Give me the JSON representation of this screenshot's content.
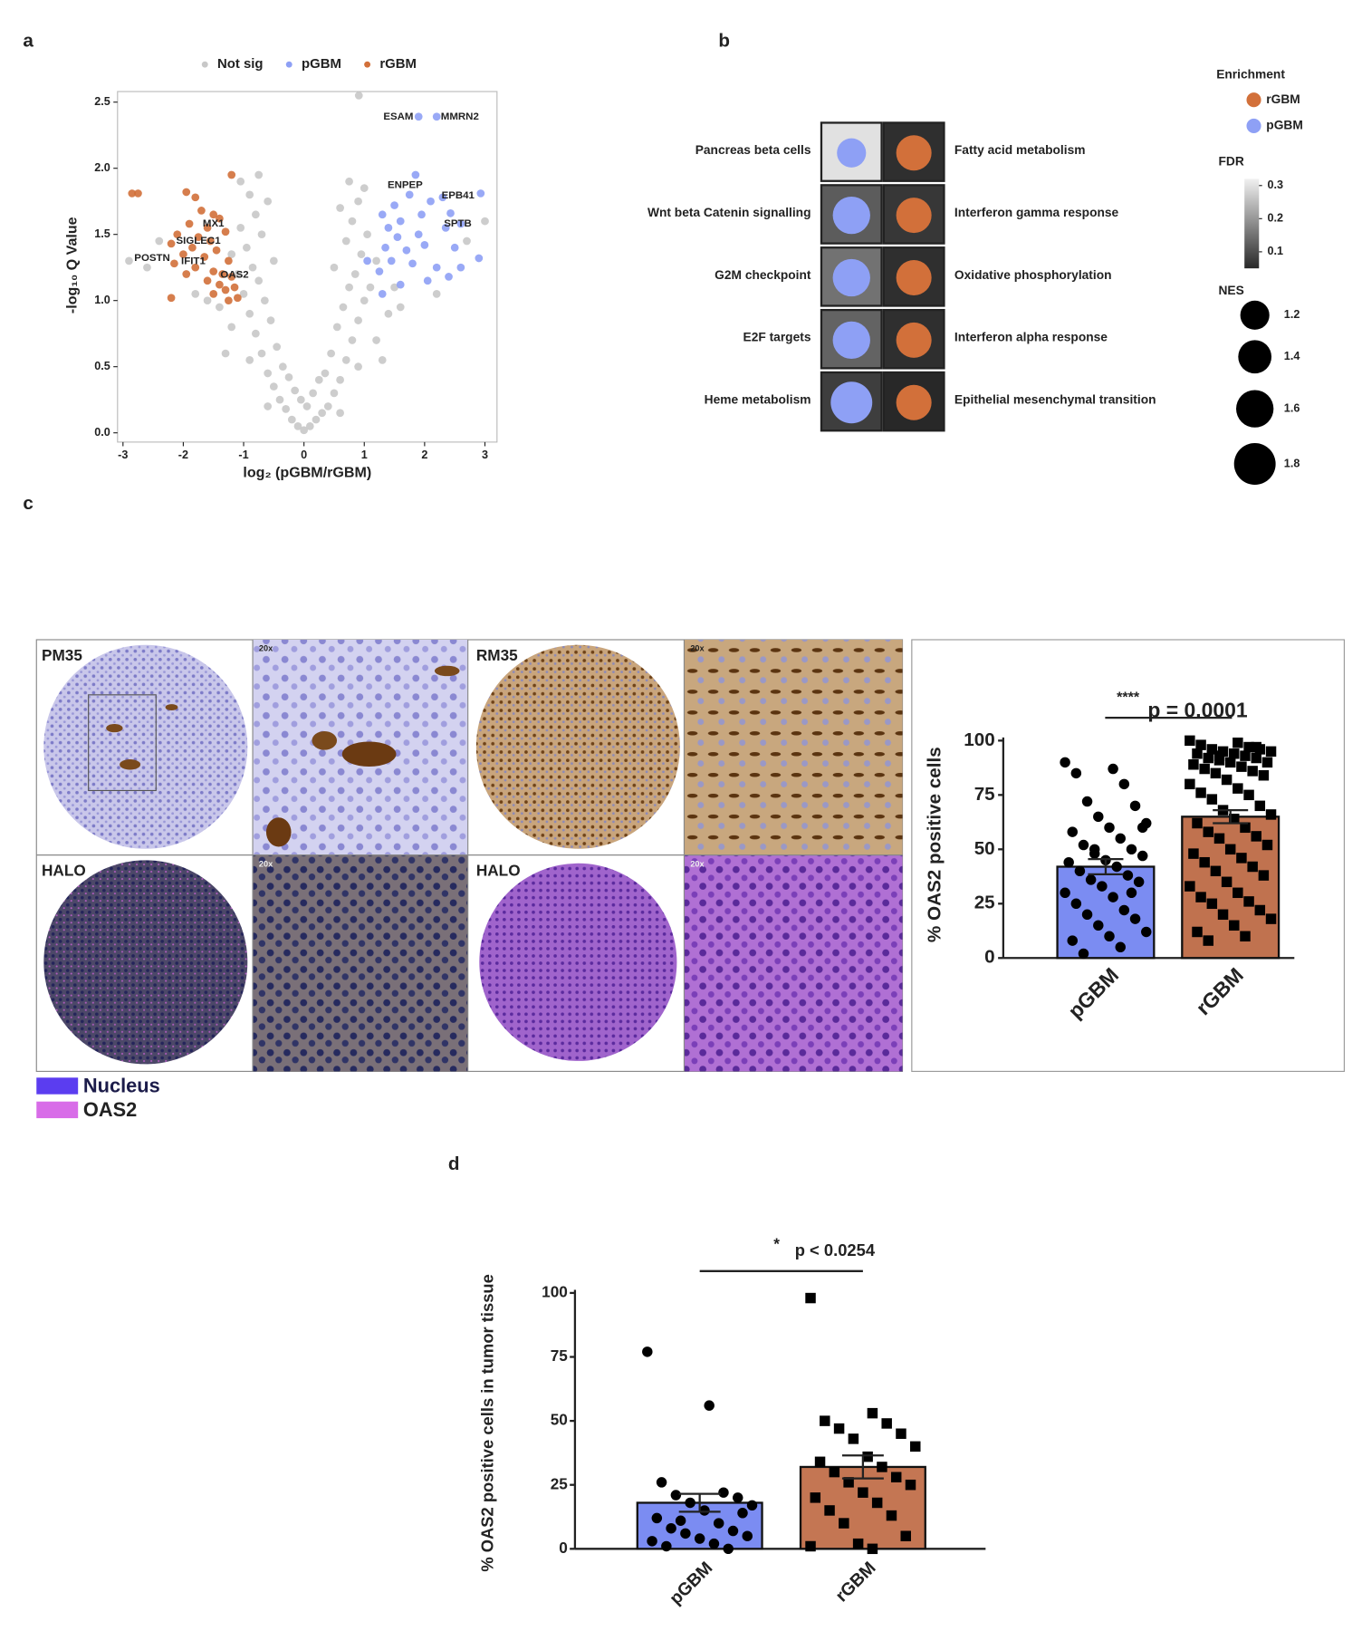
{
  "chart_data": [
    {
      "panel": "a",
      "type": "scatter",
      "xlabel": "log₂ (pGBM/rGBM)",
      "ylabel": "-log₁₀ Q Value",
      "xlim": [
        -3.09,
        3.2
      ],
      "ylim": [
        -0.07,
        2.58
      ],
      "xticks": [
        -3,
        -2,
        -1,
        0,
        1,
        2,
        3
      ],
      "yticks": [
        {
          "value": 0,
          "label": "0.0"
        },
        0.5,
        {
          "value": 1,
          "label": "1.0"
        },
        1.5,
        {
          "value": 2,
          "label": "2.0"
        },
        2.5
      ],
      "legend": "top",
      "series": [
        {
          "name": "Not sig",
          "color": "#c8c8c8",
          "x": [
            0,
            0.1,
            -0.1,
            0.2,
            -0.2,
            0.3,
            -0.3,
            0.05,
            -0.05,
            0.15,
            -0.15,
            0.4,
            -0.4,
            0.5,
            -0.5,
            0.6,
            -0.6,
            0.35,
            -0.35,
            0.7,
            -0.7,
            0.45,
            -0.45,
            0.8,
            -0.8,
            0.55,
            -0.55,
            0.9,
            -0.9,
            0.65,
            -0.65,
            1.0,
            -1.0,
            0.75,
            -0.75,
            1.1,
            -1.1,
            0.85,
            -0.85,
            0.95,
            -0.95,
            1.2,
            -1.2,
            0.7,
            -0.7,
            1.05,
            -1.05,
            0.8,
            -0.8,
            0.9,
            -0.9,
            0.75,
            -0.75,
            1.0,
            -1.05,
            0.91,
            1.2,
            -1.2,
            1.4,
            -1.4,
            1.6,
            -1.6,
            1.3,
            -1.3,
            0.25,
            -0.25,
            0.6,
            -0.6,
            0.9,
            -0.9,
            1.5,
            -2.4,
            -2.6,
            2.7,
            2.2,
            -1.8,
            0.5,
            -0.5,
            0.6,
            -0.6,
            -2.9,
            3.0
          ],
          "y": [
            0.02,
            0.05,
            0.05,
            0.1,
            0.1,
            0.15,
            0.18,
            0.2,
            0.25,
            0.3,
            0.32,
            0.2,
            0.25,
            0.3,
            0.35,
            0.4,
            0.45,
            0.45,
            0.5,
            0.55,
            0.6,
            0.6,
            0.65,
            0.7,
            0.75,
            0.8,
            0.85,
            0.85,
            0.9,
            0.95,
            1.0,
            1.0,
            1.05,
            1.1,
            1.15,
            1.1,
            1.2,
            1.2,
            1.25,
            1.35,
            1.4,
            1.3,
            1.35,
            1.45,
            1.5,
            1.5,
            1.55,
            1.6,
            1.65,
            1.75,
            1.8,
            1.9,
            1.95,
            1.85,
            1.9,
            2.55,
            0.7,
            0.8,
            0.9,
            0.95,
            0.95,
            1.0,
            0.55,
            0.6,
            0.4,
            0.42,
            0.15,
            0.2,
            0.5,
            0.55,
            1.1,
            1.45,
            1.25,
            1.45,
            1.05,
            1.05,
            1.25,
            1.3,
            1.7,
            1.75,
            1.3,
            1.6
          ]
        },
        {
          "name": "pGBM",
          "color": "#8ea0f5",
          "x": [
            1.9,
            2.2,
            1.85,
            2.93,
            2.43,
            1.3,
            1.5,
            1.6,
            1.75,
            2.1,
            2.3,
            1.4,
            1.55,
            1.9,
            2.6,
            1.35,
            1.7,
            2.0,
            2.5,
            1.45,
            1.8,
            2.2,
            2.9,
            1.05,
            1.25,
            2.4,
            1.6,
            2.05,
            1.3,
            2.6,
            1.95,
            2.35
          ],
          "y": [
            2.39,
            2.39,
            1.95,
            1.81,
            1.66,
            1.65,
            1.72,
            1.6,
            1.8,
            1.75,
            1.78,
            1.55,
            1.48,
            1.5,
            1.58,
            1.4,
            1.38,
            1.42,
            1.4,
            1.3,
            1.28,
            1.25,
            1.32,
            1.3,
            1.22,
            1.18,
            1.12,
            1.15,
            1.05,
            1.25,
            1.65,
            1.55
          ]
        },
        {
          "name": "rGBM",
          "color": "#d2703a",
          "x": [
            -2.85,
            -2.75,
            -1.95,
            -1.8,
            -1.2,
            -1.7,
            -1.5,
            -1.4,
            -1.6,
            -1.9,
            -2.1,
            -1.75,
            -1.55,
            -1.3,
            -2.2,
            -1.85,
            -1.45,
            -2.0,
            -1.65,
            -1.25,
            -2.15,
            -1.8,
            -1.5,
            -1.35,
            -1.2,
            -1.95,
            -1.6,
            -1.4,
            -1.3,
            -1.15,
            -2.2,
            -1.5,
            -1.25,
            -1.1
          ],
          "y": [
            1.81,
            1.81,
            1.82,
            1.78,
            1.95,
            1.68,
            1.65,
            1.62,
            1.55,
            1.58,
            1.5,
            1.48,
            1.45,
            1.52,
            1.43,
            1.4,
            1.38,
            1.35,
            1.33,
            1.3,
            1.28,
            1.25,
            1.22,
            1.2,
            1.18,
            1.2,
            1.15,
            1.12,
            1.08,
            1.1,
            1.02,
            1.05,
            1.0,
            1.02
          ]
        }
      ],
      "annotations": [
        {
          "text": "ESAM",
          "x": 1.9,
          "y": 2.39
        },
        {
          "text": "MMRN2",
          "x": 2.2,
          "y": 2.39
        },
        {
          "text": "ENPEP",
          "x": 1.85,
          "y": 1.95
        },
        {
          "text": "EPB41",
          "x": 2.93,
          "y": 1.81
        },
        {
          "text": "SPTB",
          "x": 2.43,
          "y": 1.66
        },
        {
          "text": "MX1",
          "x": -1.5,
          "y": 1.65
        },
        {
          "text": "SIGLEC1",
          "x": -1.75,
          "y": 1.48
        },
        {
          "text": "POSTN",
          "x": -2.15,
          "y": 1.28
        },
        {
          "text": "IFIT1",
          "x": -1.8,
          "y": 1.25
        },
        {
          "text": "OAS2",
          "x": -1.35,
          "y": 1.2
        }
      ]
    },
    {
      "panel": "b",
      "type": "dotplot",
      "legend_title": "Enrichment",
      "fdr_title": "FDR",
      "nes_title": "NES",
      "fdr_lim": [
        0.05,
        0.32
      ],
      "fdr_ticks": [
        0.3,
        0.2,
        0.1
      ],
      "nes_ticks": [
        1.2,
        1.4,
        1.6,
        1.8
      ],
      "columns": [
        {
          "name": "pGBM",
          "color": "#8ea0f5",
          "terms": [
            "Pancreas beta cells",
            "Wnt beta Catenin signalling",
            "G2M checkpoint",
            "E2F targets",
            "Heme metabolism"
          ],
          "nes": [
            1.2,
            1.6,
            1.6,
            1.6,
            1.8
          ],
          "fdr": [
            0.3,
            0.12,
            0.15,
            0.13,
            0.08
          ]
        },
        {
          "name": "rGBM",
          "color": "#d2703a",
          "terms": [
            "Fatty acid metabolism",
            "Interferon gamma response",
            "Oxidative phosphorylation",
            "Interferon alpha response",
            "Epithelial mesenchymal transition"
          ],
          "nes": [
            1.5,
            1.5,
            1.5,
            1.5,
            1.5
          ],
          "fdr": [
            0.06,
            0.07,
            0.06,
            0.06,
            0.05
          ]
        }
      ]
    },
    {
      "type": "bar",
      "categories": [
        "pGBM",
        "rGBM"
      ],
      "values": [
        42,
        65
      ],
      "errors": [
        3.5,
        3
      ],
      "colors": [
        "#7b8cf2",
        "#c0724f"
      ],
      "ylabel": "% OAS2 positive cells",
      "ylim": [
        0,
        100
      ],
      "yticks": [
        0,
        25,
        50,
        75,
        100
      ],
      "points": [
        [
          90,
          87,
          85,
          80,
          72,
          70,
          65,
          62,
          60,
          58,
          55,
          52,
          50,
          48,
          47,
          45,
          44,
          42,
          40,
          38,
          36,
          35,
          33,
          30,
          28,
          25,
          22,
          20,
          18,
          15,
          12,
          10,
          8,
          5,
          2,
          30,
          50,
          60
        ],
        [
          100,
          99,
          98,
          97,
          96,
          96,
          95,
          95,
          94,
          94,
          93,
          92,
          92,
          91,
          90,
          90,
          89,
          88,
          87,
          86,
          85,
          84,
          82,
          80,
          78,
          76,
          75,
          73,
          70,
          68,
          66,
          64,
          62,
          60,
          58,
          56,
          55,
          52,
          50,
          48,
          46,
          44,
          42,
          40,
          38,
          35,
          33,
          30,
          28,
          26,
          25,
          22,
          20,
          18,
          15,
          12,
          10,
          8,
          97,
          93
        ]
      ],
      "significance": {
        "stars": "****",
        "text": "p = 0.0001"
      }
    },
    {
      "panel": "d",
      "type": "bar",
      "categories": [
        "pGBM",
        "rGBM"
      ],
      "values": [
        18,
        32
      ],
      "errors": [
        3.5,
        4.5
      ],
      "colors": [
        "#7b8cf2",
        "#c47653"
      ],
      "ylabel": "% OAS2 positive cells in tumor tissue",
      "ylim": [
        0,
        100
      ],
      "yticks": [
        0,
        25,
        50,
        75,
        100
      ],
      "points": [
        [
          77,
          56,
          26,
          22,
          21,
          20,
          18,
          17,
          15,
          12,
          10,
          8,
          7,
          6,
          5,
          4,
          3,
          2,
          1,
          0,
          11,
          14
        ],
        [
          98,
          53,
          50,
          49,
          47,
          45,
          43,
          40,
          36,
          34,
          32,
          30,
          28,
          26,
          25,
          22,
          20,
          18,
          15,
          13,
          10,
          5,
          2,
          1,
          0
        ]
      ],
      "significance": {
        "stars": "*",
        "text": "p < 0.0254"
      }
    }
  ],
  "images": {
    "panel": "c",
    "labels": [
      "PM35",
      "RM35",
      "HALO",
      "HALO"
    ],
    "magnification": "20x",
    "legend": [
      "Nucleus",
      "OAS2"
    ]
  }
}
